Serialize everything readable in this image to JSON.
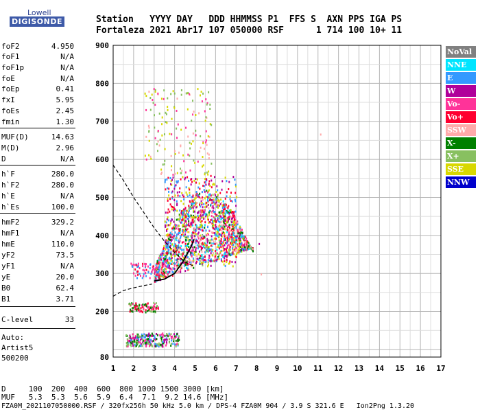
{
  "logo": {
    "brand": "Lowell",
    "product": "DIGISONDE"
  },
  "header": {
    "line1": "Station   YYYY DAY   DDD HHMMSS P1  FFS S  AXN PPS IGA PS",
    "line2": "Fortaleza 2021 Abr17 107 050000 RSF      1 714 100 10+ 11"
  },
  "params": [
    {
      "k": "foF2",
      "v": "4.950"
    },
    {
      "k": "foF1",
      "v": "N/A"
    },
    {
      "k": "foF1p",
      "v": "N/A"
    },
    {
      "k": "foE",
      "v": "N/A"
    },
    {
      "k": "foEp",
      "v": "0.41"
    },
    {
      "k": "fxI",
      "v": "5.95"
    },
    {
      "k": "foEs",
      "v": "2.45"
    },
    {
      "k": "fmin",
      "v": "1.30"
    },
    {
      "k": "MUF(D)",
      "v": "14.63"
    },
    {
      "k": "M(D)",
      "v": "2.96"
    },
    {
      "k": "D",
      "v": "N/A"
    },
    {
      "k": "h`F",
      "v": "280.0"
    },
    {
      "k": "h`F2",
      "v": "280.0"
    },
    {
      "k": "h`E",
      "v": "N/A"
    },
    {
      "k": "h`Es",
      "v": "100.0"
    },
    {
      "k": "hmF2",
      "v": "329.2"
    },
    {
      "k": "hmF1",
      "v": "N/A"
    },
    {
      "k": "hmE",
      "v": "110.0"
    },
    {
      "k": "yF2",
      "v": "73.5"
    },
    {
      "k": "yF1",
      "v": "N/A"
    },
    {
      "k": "yE",
      "v": "20.0"
    },
    {
      "k": "B0",
      "v": "62.4"
    },
    {
      "k": "B1",
      "v": "3.71"
    },
    {
      "k": "C-level",
      "v": "33"
    }
  ],
  "autoscale": {
    "l1": "Auto:",
    "l2": "Artist5",
    "l3": "500200"
  },
  "legend": [
    {
      "label": "NoVal",
      "color": "#808080"
    },
    {
      "label": "NNE",
      "color": "#00e5ff"
    },
    {
      "label": "E",
      "color": "#3399ff"
    },
    {
      "label": "W",
      "color": "#b0009a"
    },
    {
      "label": "Vo-",
      "color": "#ff3399"
    },
    {
      "label": "Vo+",
      "color": "#ff0030"
    },
    {
      "label": "SSW",
      "color": "#ffaaaa"
    },
    {
      "label": "X-",
      "color": "#008000"
    },
    {
      "label": "X+",
      "color": "#88c060"
    },
    {
      "label": "SSE",
      "color": "#d8d800"
    },
    {
      "label": "NNW",
      "color": "#0000cc"
    }
  ],
  "footer": {
    "line1": "D     100  200  400  600  800 1000 1500 3000 [km]",
    "line2": "MUF   5.3  5.3  5.6  5.9  6.4  7.1  9.2 14.6 [MHz]",
    "line3": "FZA0M_2021107050000.RSF / 320fx256h 50 kHz 5.0 km / DPS-4 FZA0M 904 / 3.9 S 321.6 E   Ion2Png 1.3.20"
  },
  "chart_data": {
    "type": "scatter",
    "xlim": [
      1,
      17
    ],
    "ylim": [
      80,
      900
    ],
    "x_ticks": [
      1,
      2,
      3,
      4,
      5,
      6,
      7,
      8,
      9,
      10,
      11,
      12,
      13,
      14,
      15,
      16,
      17
    ],
    "y_ticks": [
      80,
      200,
      300,
      400,
      500,
      600,
      700,
      800,
      900
    ],
    "grid": true,
    "clusters": [
      {
        "name": "F-trace",
        "x": [
          3.0,
          7.8
        ],
        "y": [
          280,
          520
        ],
        "colors": [
          "#ff0030",
          "#ff3399",
          "#b0009a",
          "#3399ff",
          "#00e5ff",
          "#d8d800",
          "#88c060",
          "#008000",
          "#ffaaaa"
        ]
      },
      {
        "name": "F-upper",
        "x": [
          3.5,
          7.0
        ],
        "y": [
          320,
          560
        ],
        "colors": [
          "#ff0030",
          "#b0009a",
          "#3399ff",
          "#d8d800"
        ]
      },
      {
        "name": "F-high",
        "x": [
          2.5,
          5.8
        ],
        "y": [
          560,
          790
        ],
        "colors": [
          "#d8d800",
          "#ffaaaa",
          "#ff3399",
          "#88c060"
        ]
      },
      {
        "name": "Es-200",
        "x": [
          1.7,
          3.2
        ],
        "y": [
          200,
          225
        ],
        "colors": [
          "#008000",
          "#ff3399",
          "#88c060",
          "#ff0030"
        ]
      },
      {
        "name": "Es-120",
        "x": [
          1.6,
          4.2
        ],
        "y": [
          110,
          145
        ],
        "colors": [
          "#b0009a",
          "#008000",
          "#88c060",
          "#ff3399",
          "#3399ff"
        ]
      },
      {
        "name": "low-F",
        "x": [
          1.8,
          3.5
        ],
        "y": [
          290,
          330
        ],
        "colors": [
          "#ff0030",
          "#ff3399",
          "#3399ff"
        ]
      }
    ],
    "profile_solid": {
      "x": [
        3.0,
        3.5,
        4.0,
        4.4,
        4.8,
        4.95
      ],
      "y": [
        280,
        285,
        300,
        330,
        370,
        390
      ]
    },
    "profile_dashed": {
      "x": [
        1.0,
        1.5,
        2.0,
        2.5,
        3.0,
        3.5,
        4.0,
        4.5,
        4.9
      ],
      "y": [
        585,
        545,
        500,
        460,
        420,
        385,
        355,
        330,
        320
      ]
    },
    "profile_dashed_low": {
      "x": [
        1.0,
        1.5,
        2.0,
        2.5,
        2.9
      ],
      "y": [
        240,
        255,
        262,
        268,
        272
      ]
    }
  }
}
